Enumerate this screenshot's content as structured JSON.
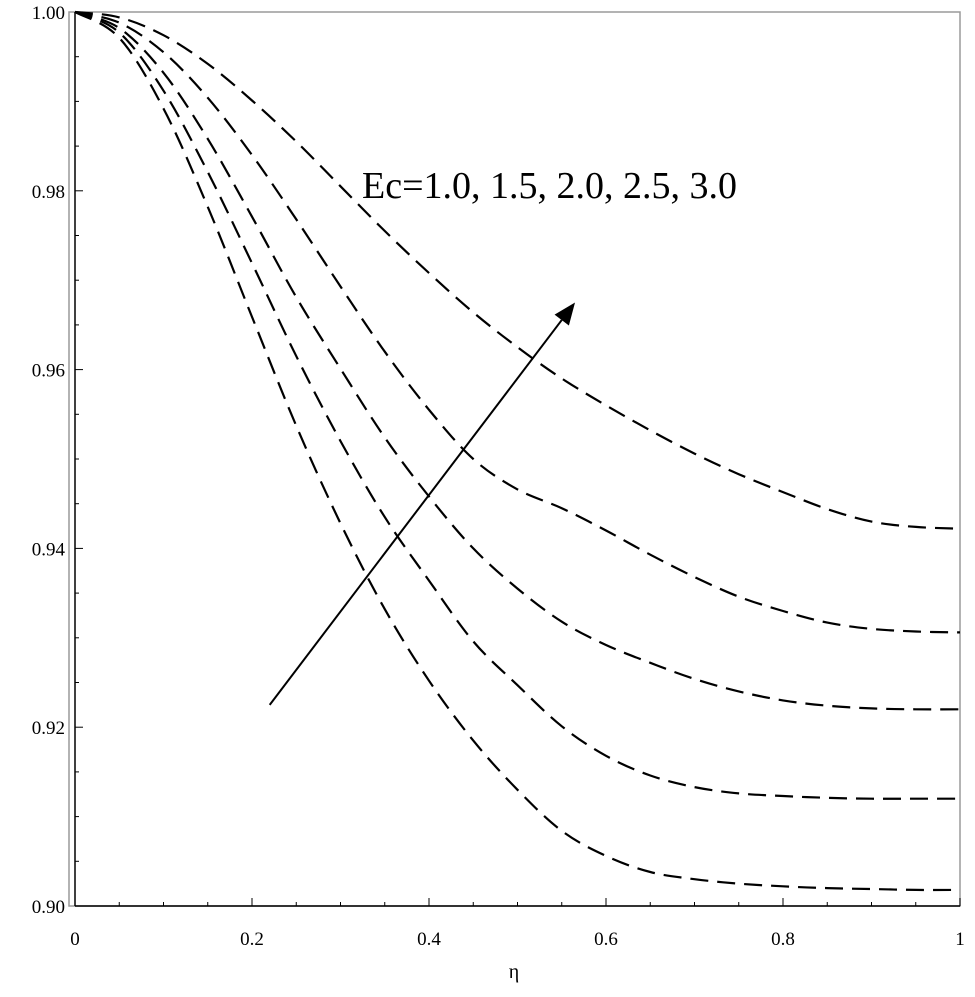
{
  "chart_data": {
    "type": "line",
    "title": "",
    "xlabel": "η",
    "ylabel": "",
    "xlim": [
      0,
      1
    ],
    "ylim": [
      0.9,
      1.0
    ],
    "x_ticks": [
      "0",
      "0.2",
      "0.4",
      "0.6",
      "0.8",
      "1"
    ],
    "y_ticks": [
      "0.90",
      "0.92",
      "0.94",
      "0.96",
      "0.98",
      "1.00"
    ],
    "grid": false,
    "line_style": "dashed",
    "line_color": "#000000",
    "annotation": "Ec=1.0, 1.5, 2.0, 2.5, 3.0",
    "arrow": {
      "from": [
        0.22,
        0.9225
      ],
      "to": [
        0.565,
        0.9675
      ]
    },
    "x": [
      0,
      0.05,
      0.1,
      0.15,
      0.2,
      0.25,
      0.3,
      0.35,
      0.4,
      0.45,
      0.5,
      0.55,
      0.6,
      0.65,
      0.7,
      0.75,
      0.8,
      0.85,
      0.9,
      0.95,
      1.0
    ],
    "series": [
      {
        "values": [
          1.0,
          0.9988,
          0.9955,
          0.9904,
          0.984,
          0.9768,
          0.9693,
          0.962,
          0.9555,
          0.95,
          0.9466,
          0.9445,
          0.942,
          0.9393,
          0.9368,
          0.9346,
          0.933,
          0.9317,
          0.931,
          0.9307,
          0.9306
        ]
      },
      {
        "values": [
          1.0,
          0.9977,
          0.9912,
          0.9821,
          0.9719,
          0.9615,
          0.952,
          0.9435,
          0.9364,
          0.9296,
          0.9247,
          0.9201,
          0.9168,
          0.9146,
          0.9133,
          0.9126,
          0.9123,
          0.9121,
          0.912,
          0.912,
          0.912
        ]
      },
      {
        "values": [
          1.0,
          0.9982,
          0.9932,
          0.9858,
          0.9771,
          0.9681,
          0.9601,
          0.9524,
          0.9458,
          0.94,
          0.9355,
          0.9318,
          0.9292,
          0.9272,
          0.9254,
          0.924,
          0.923,
          0.9224,
          0.9221,
          0.922,
          0.922
        ]
      },
      {
        "values": [
          1.0,
          0.9994,
          0.9974,
          0.9942,
          0.9901,
          0.9855,
          0.9805,
          0.9755,
          0.9708,
          0.9664,
          0.9625,
          0.959,
          0.956,
          0.9532,
          0.9506,
          0.9483,
          0.9463,
          0.9444,
          0.943,
          0.9424,
          0.9422
        ]
      },
      {
        "values": [
          1.0,
          0.9971,
          0.9892,
          0.9782,
          0.9659,
          0.9537,
          0.9428,
          0.9332,
          0.9252,
          0.9185,
          0.913,
          0.9084,
          0.9056,
          0.9038,
          0.903,
          0.9025,
          0.9022,
          0.902,
          0.9019,
          0.9018,
          0.9018
        ]
      }
    ]
  }
}
